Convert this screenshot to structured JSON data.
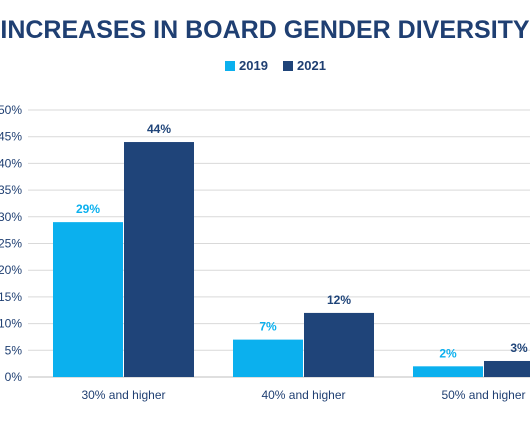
{
  "chart_data": {
    "type": "bar",
    "title": "INCREASES IN BOARD GENDER DIVERSITY",
    "categories": [
      "30% and higher",
      "40% and higher",
      "50% and higher"
    ],
    "series": [
      {
        "name": "2019",
        "values": [
          29,
          7,
          2
        ],
        "labels": [
          "29%",
          "7%",
          "2%"
        ],
        "color": "#0bb0ee"
      },
      {
        "name": "2021",
        "values": [
          44,
          12,
          3
        ],
        "labels": [
          "44%",
          "12%",
          "3%"
        ],
        "color": "#1f4479"
      }
    ],
    "ylim": [
      0,
      50
    ],
    "yticks": [
      0,
      5,
      10,
      15,
      20,
      25,
      30,
      35,
      40,
      45,
      50
    ],
    "ytick_labels": [
      "0%",
      "5%",
      "10%",
      "15%",
      "20%",
      "25%",
      "30%",
      "35%",
      "40%",
      "45%",
      "50%"
    ],
    "xlabel": "",
    "ylabel": "",
    "grid": true,
    "legend_position": "top-center",
    "colors": {
      "title": "#1f3f72",
      "grid": "#d9d9d9",
      "axis_text": "#1f3f72"
    }
  }
}
